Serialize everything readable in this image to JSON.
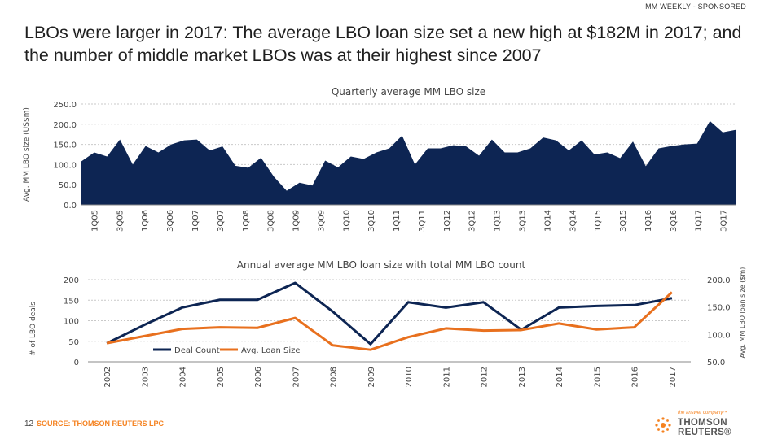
{
  "header": {
    "tag": "MM WEEKLY - SPONSORED"
  },
  "title": "LBOs were larger in 2017: The average LBO loan size set a new high at $182M in 2017; and the number of middle market LBOs was at their highest since 2007",
  "footer": {
    "page_number": "12",
    "source": "SOURCE: THOMSON REUTERS LPC"
  },
  "logo": {
    "tagline": "the answer company™",
    "name": "THOMSON REUTERS®",
    "brand_color": "#f58220"
  },
  "colors": {
    "navy": "#0d2553",
    "orange": "#e8701e",
    "grid": "#c9c9c9"
  },
  "chart_data": [
    {
      "type": "area",
      "title": "Quarterly average MM LBO size",
      "ylabel": "Avg. MM LBO size (US$m)",
      "xlabel": "",
      "ylim": [
        0,
        250
      ],
      "yticks": [
        0,
        50,
        100,
        150,
        200,
        250
      ],
      "ytick_labels": [
        "0.0",
        "50.0",
        "100.0",
        "150.0",
        "200.0",
        "250.0"
      ],
      "xtick_labels": [
        "1Q05",
        "3Q05",
        "1Q06",
        "3Q06",
        "1Q07",
        "3Q07",
        "1Q08",
        "3Q08",
        "1Q09",
        "3Q09",
        "1Q10",
        "3Q10",
        "1Q11",
        "3Q11",
        "1Q12",
        "3Q12",
        "1Q13",
        "3Q13",
        "1Q14",
        "3Q14",
        "1Q15",
        "3Q15",
        "1Q16",
        "3Q16",
        "1Q17",
        "3Q17"
      ],
      "grid": true,
      "series": [
        {
          "values": [
            108,
            130,
            120,
            162,
            100,
            146,
            130,
            150,
            160,
            162,
            135,
            145,
            97,
            92,
            117,
            70,
            35,
            55,
            48,
            110,
            93,
            120,
            114,
            130,
            140,
            172,
            100,
            140,
            140,
            148,
            145,
            122,
            162,
            130,
            130,
            140,
            167,
            160,
            135,
            160,
            125,
            130,
            116,
            157,
            96,
            140,
            146,
            150,
            152,
            208,
            180,
            186
          ]
        }
      ]
    },
    {
      "type": "line",
      "title": "Annual average MM LBO loan size with total MM LBO count",
      "ylabel": "# of LBO deals",
      "y2label": "Avg. MM LBO loan size ($m)",
      "xlabel": "",
      "categories": [
        "2002",
        "2003",
        "2004",
        "2005",
        "2006",
        "2007",
        "2008",
        "2009",
        "2010",
        "2011",
        "2012",
        "2013",
        "2014",
        "2015",
        "2016",
        "2017"
      ],
      "ylim": [
        0,
        200
      ],
      "yticks": [
        0,
        50,
        100,
        150,
        200
      ],
      "ytick_labels": [
        "0",
        "50",
        "100",
        "150",
        "200"
      ],
      "y2lim": [
        50,
        200
      ],
      "y2ticks": [
        50,
        100,
        150,
        200
      ],
      "y2tick_labels": [
        "50.0",
        "100.0",
        "150.0",
        "200.0"
      ],
      "grid": true,
      "legend_position": "bottom-left-inside",
      "series": [
        {
          "name": "Deal Count",
          "axis": "left",
          "color": "#0d2553",
          "values": [
            45,
            90,
            132,
            151,
            151,
            192,
            122,
            43,
            145,
            132,
            145,
            78,
            132,
            136,
            138,
            155
          ]
        },
        {
          "name": "Avg. Loan Size",
          "axis": "right",
          "color": "#e8701e",
          "values": [
            84,
            97,
            110,
            113,
            112,
            130,
            80,
            72,
            95,
            111,
            107,
            108,
            120,
            109,
            113,
            177
          ]
        }
      ]
    }
  ]
}
